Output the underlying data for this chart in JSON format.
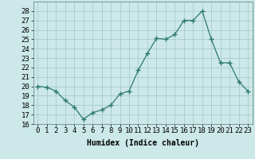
{
  "x": [
    0,
    1,
    2,
    3,
    4,
    5,
    6,
    7,
    8,
    9,
    10,
    11,
    12,
    13,
    14,
    15,
    16,
    17,
    18,
    19,
    20,
    21,
    22,
    23
  ],
  "y": [
    20.0,
    19.9,
    19.5,
    18.5,
    17.8,
    16.5,
    17.2,
    17.5,
    18.0,
    19.2,
    19.5,
    21.7,
    23.5,
    25.1,
    25.0,
    25.5,
    27.0,
    27.0,
    28.0,
    25.0,
    22.5,
    22.5,
    20.5,
    19.5
  ],
  "line_color": "#2d7a6e",
  "marker": "+",
  "marker_size": 4,
  "bg_color": "#cce8e8",
  "grid_color": "#aacccc",
  "xlabel": "Humidex (Indice chaleur)",
  "ylim": [
    16,
    29
  ],
  "xlim": [
    -0.5,
    23.5
  ],
  "yticks": [
    16,
    17,
    18,
    19,
    20,
    21,
    22,
    23,
    24,
    25,
    26,
    27,
    28
  ],
  "xtick_labels": [
    "0",
    "1",
    "2",
    "3",
    "4",
    "5",
    "6",
    "7",
    "8",
    "9",
    "10",
    "11",
    "12",
    "13",
    "14",
    "15",
    "16",
    "17",
    "18",
    "19",
    "20",
    "21",
    "22",
    "23"
  ],
  "label_fontsize": 7,
  "tick_fontsize": 6.5
}
